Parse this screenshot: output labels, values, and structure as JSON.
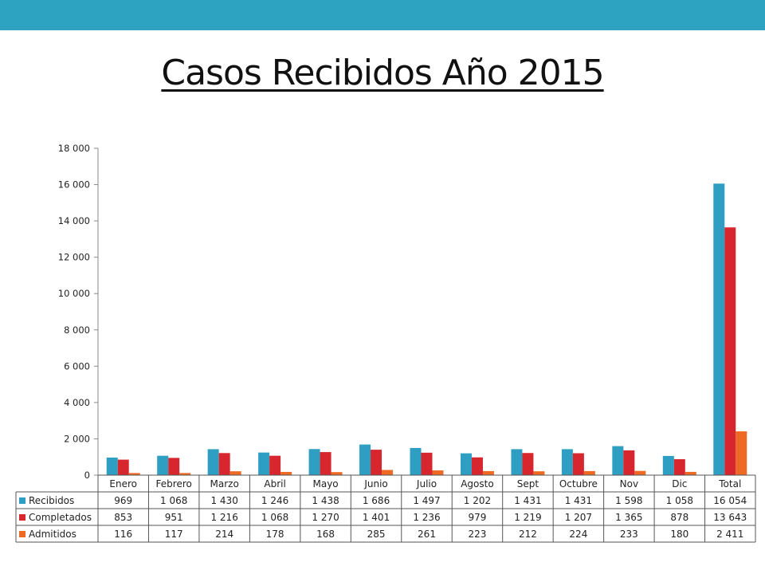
{
  "title": "Casos Recibidos Año 2015",
  "colors": {
    "band": "#2ea2c1",
    "Recibidos": "#2e9fc3",
    "Completados": "#d8262e",
    "Admitidos": "#ee6a24"
  },
  "chart_data": {
    "type": "bar",
    "categories": [
      "Enero",
      "Febrero",
      "Marzo",
      "Abril",
      "Mayo",
      "Junio",
      "Julio",
      "Agosto",
      "Sept",
      "Octubre",
      "Nov",
      "Dic",
      "Total"
    ],
    "series": [
      {
        "name": "Recibidos",
        "values": [
          969,
          1068,
          1430,
          1246,
          1438,
          1686,
          1497,
          1202,
          1431,
          1431,
          1598,
          1058,
          16054
        ],
        "labels": [
          "969",
          "1 068",
          "1 430",
          "1 246",
          "1 438",
          "1 686",
          "1 497",
          "1 202",
          "1 431",
          "1 431",
          "1 598",
          "1 058",
          "16 054"
        ]
      },
      {
        "name": "Completados",
        "values": [
          853,
          951,
          1216,
          1068,
          1270,
          1401,
          1236,
          979,
          1219,
          1207,
          1365,
          878,
          13643
        ],
        "labels": [
          "853",
          "951",
          "1 216",
          "1 068",
          "1 270",
          "1 401",
          "1 236",
          "979",
          "1 219",
          "1 207",
          "1 365",
          "878",
          "13 643"
        ]
      },
      {
        "name": "Admitidos",
        "values": [
          116,
          117,
          214,
          178,
          168,
          285,
          261,
          223,
          212,
          224,
          233,
          180,
          2411
        ],
        "labels": [
          "116",
          "117",
          "214",
          "178",
          "168",
          "285",
          "261",
          "223",
          "212",
          "224",
          "233",
          "180",
          "2 411"
        ]
      }
    ],
    "ylim": [
      0,
      18000
    ],
    "yticks": [
      0,
      2000,
      4000,
      6000,
      8000,
      10000,
      12000,
      14000,
      16000,
      18000
    ],
    "ytick_labels": [
      "0",
      "2 000",
      "4 000",
      "6 000",
      "8 000",
      "10 000",
      "12 000",
      "14 000",
      "16 000",
      "18 000"
    ],
    "data_table": true,
    "grid": false
  }
}
